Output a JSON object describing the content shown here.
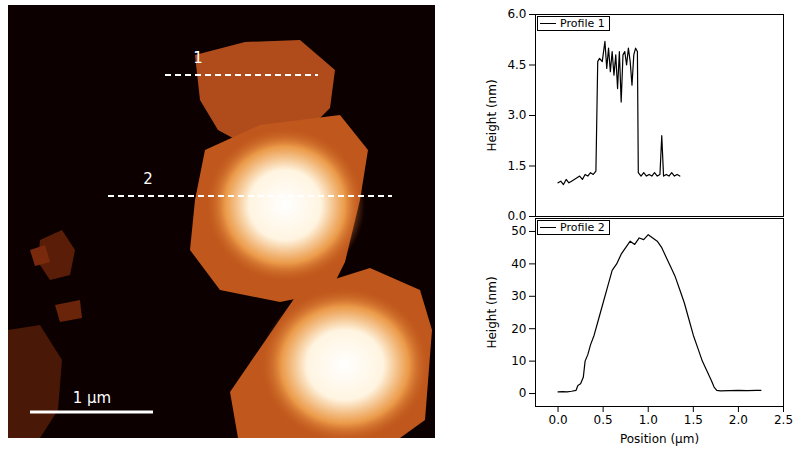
{
  "image": {
    "line_labels": [
      "1",
      "2"
    ],
    "scale_bar": "1 µm"
  },
  "chart_data": [
    {
      "type": "line",
      "y_label": "Height (nm)",
      "legend": "upper left",
      "tick_labels": "y",
      "xlim": [
        -0.25,
        2.5
      ],
      "ylim": [
        0,
        6
      ],
      "yticks": [
        {
          "value": 0,
          "label": "0.0"
        },
        {
          "value": 1.5,
          "label": "1.5"
        },
        {
          "value": 3,
          "label": "3.0"
        },
        {
          "value": 4.5,
          "label": "4.5"
        },
        {
          "value": 6,
          "label": "6.0"
        }
      ],
      "x": [
        0.0,
        0.03,
        0.06,
        0.09,
        0.12,
        0.15,
        0.18,
        0.21,
        0.24,
        0.27,
        0.3,
        0.33,
        0.36,
        0.39,
        0.42,
        0.44,
        0.46,
        0.49,
        0.52,
        0.54,
        0.56,
        0.58,
        0.6,
        0.62,
        0.64,
        0.66,
        0.68,
        0.7,
        0.72,
        0.74,
        0.76,
        0.78,
        0.8,
        0.82,
        0.84,
        0.86,
        0.88,
        0.89,
        0.92,
        0.95,
        0.98,
        1.01,
        1.04,
        1.07,
        1.1,
        1.13,
        1.15,
        1.17,
        1.2,
        1.23,
        1.26,
        1.29,
        1.32,
        1.35
      ],
      "series": [
        {
          "name": "Profile 1",
          "color": "#000000",
          "values": [
            1.0,
            1.05,
            0.95,
            1.1,
            1.0,
            1.05,
            1.1,
            1.15,
            1.2,
            1.1,
            1.25,
            1.2,
            1.3,
            1.25,
            1.35,
            4.6,
            4.7,
            4.6,
            5.2,
            4.4,
            5.0,
            4.3,
            4.9,
            4.2,
            4.8,
            3.8,
            4.9,
            3.4,
            4.8,
            4.9,
            4.5,
            5.0,
            4.6,
            3.9,
            4.8,
            5.0,
            4.9,
            1.3,
            1.2,
            1.3,
            1.2,
            1.25,
            1.2,
            1.3,
            1.2,
            1.25,
            2.4,
            1.2,
            1.25,
            1.2,
            1.3,
            1.2,
            1.25,
            1.2
          ]
        }
      ]
    },
    {
      "type": "line",
      "x_label": "Position (µm)",
      "y_label": "Height (nm)",
      "legend": "upper left",
      "xlim": [
        -0.25,
        2.5
      ],
      "xticks": [
        {
          "value": 0,
          "label": "0.0"
        },
        {
          "value": 0.5,
          "label": "0.5"
        },
        {
          "value": 1,
          "label": "1.0"
        },
        {
          "value": 1.5,
          "label": "1.5"
        },
        {
          "value": 2,
          "label": "2.0"
        },
        {
          "value": 2.5,
          "label": "2.5"
        }
      ],
      "ylim": [
        -4,
        54
      ],
      "yticks": [
        0,
        10,
        20,
        30,
        40,
        50
      ],
      "x": [
        0.0,
        0.05,
        0.1,
        0.15,
        0.2,
        0.22,
        0.25,
        0.28,
        0.3,
        0.33,
        0.36,
        0.4,
        0.45,
        0.5,
        0.55,
        0.6,
        0.65,
        0.7,
        0.75,
        0.8,
        0.85,
        0.9,
        0.95,
        1.0,
        1.05,
        1.1,
        1.15,
        1.2,
        1.25,
        1.3,
        1.35,
        1.4,
        1.45,
        1.5,
        1.55,
        1.6,
        1.65,
        1.7,
        1.73,
        1.76,
        1.8,
        1.9,
        2.0,
        2.1,
        2.2,
        2.25
      ],
      "series": [
        {
          "name": "Profile 2",
          "color": "#000000",
          "values": [
            0.5,
            0.6,
            0.5,
            0.7,
            1.0,
            2.5,
            3.0,
            5.0,
            10.0,
            12.0,
            15.0,
            18.0,
            23.0,
            28.0,
            33.0,
            38.0,
            40.0,
            43.0,
            45.0,
            47.0,
            46.0,
            48.0,
            47.5,
            49.0,
            48.0,
            47.0,
            45.0,
            42.0,
            39.0,
            36.0,
            32.0,
            28.0,
            23.0,
            18.0,
            14.0,
            10.0,
            7.0,
            4.0,
            2.0,
            1.0,
            0.8,
            0.9,
            1.0,
            0.9,
            1.0,
            1.0
          ]
        }
      ]
    }
  ]
}
